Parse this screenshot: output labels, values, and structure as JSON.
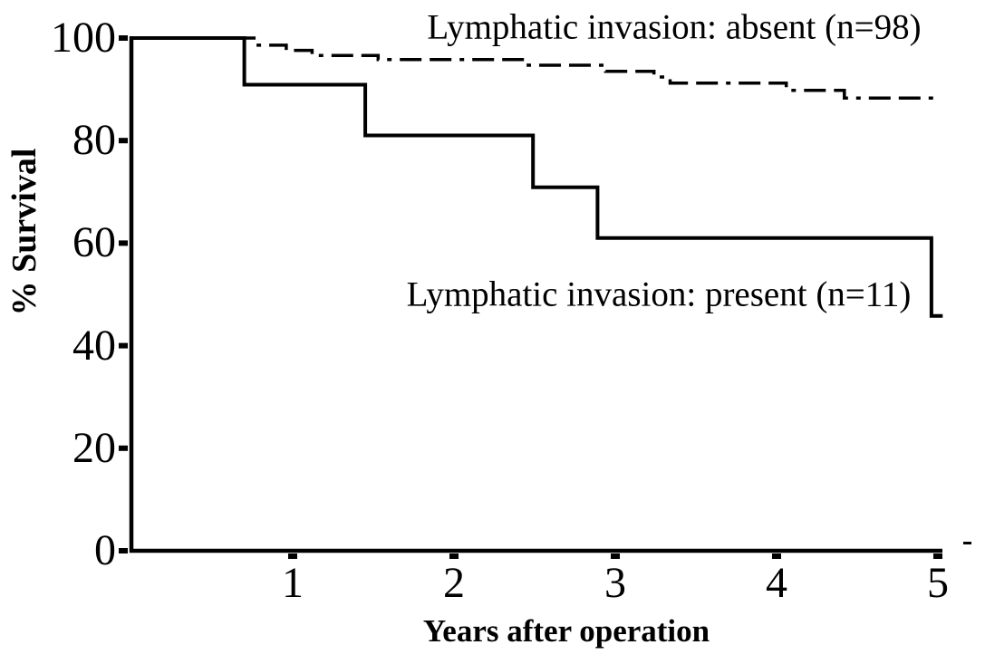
{
  "colors": {
    "line": "#000000",
    "background": "#ffffff"
  },
  "chart_data": {
    "type": "line",
    "variant": "kaplan_meier_step",
    "title": "",
    "xlabel": "Years after operation",
    "ylabel": "% Survival",
    "xlim": [
      0,
      5.05
    ],
    "ylim": [
      0,
      100
    ],
    "xticks": [
      1,
      2,
      3,
      4,
      5
    ],
    "yticks": [
      0,
      20,
      40,
      60,
      80,
      100
    ],
    "grid": false,
    "legend_position": "inline-annotations",
    "series": [
      {
        "name": "Lymphatic invasion: absent (n=98)",
        "line_style": "dashed",
        "n": 98,
        "steps": [
          [
            0,
            100
          ],
          [
            0.76,
            98.6
          ],
          [
            0.96,
            97.6
          ],
          [
            1.12,
            96.6
          ],
          [
            1.53,
            95.8
          ],
          [
            2.46,
            94.7
          ],
          [
            2.94,
            93.5
          ],
          [
            3.24,
            92.4
          ],
          [
            3.34,
            91.2
          ],
          [
            4.06,
            89.8
          ],
          [
            4.42,
            88.3
          ]
        ],
        "end_x": 5.02,
        "final_survival_pct": 88.3
      },
      {
        "name": "Lymphatic invasion: present (n=11)",
        "line_style": "solid",
        "n": 11,
        "steps": [
          [
            0,
            100
          ],
          [
            0.7,
            90.9
          ],
          [
            1.45,
            81.0
          ],
          [
            2.49,
            70.9
          ],
          [
            2.89,
            61.0
          ],
          [
            4.96,
            45.8
          ]
        ],
        "end_x": 5.03,
        "final_survival_pct": 45.8
      }
    ]
  }
}
